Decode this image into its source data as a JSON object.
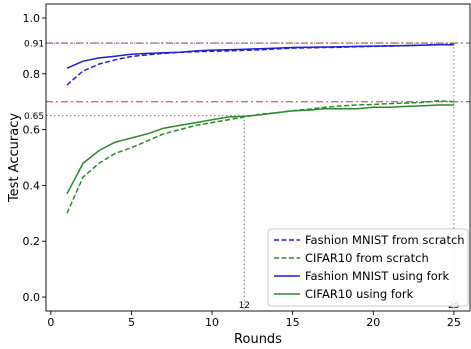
{
  "chart_data": {
    "type": "line",
    "xlabel": "Rounds",
    "ylabel": "Test Accuracy",
    "xlim": [
      -0.3,
      26
    ],
    "ylim": [
      -0.05,
      1.05
    ],
    "xticks": [
      0,
      5,
      10,
      15,
      20,
      25
    ],
    "yticks": [
      0.0,
      0.2,
      0.4,
      0.6,
      0.8,
      1.0
    ],
    "xtick_labels": [
      "0",
      "5",
      "10",
      "15",
      "20",
      "25"
    ],
    "ytick_labels": [
      "0.0",
      "0.2",
      "0.4",
      "0.6",
      "0.8",
      "1.0"
    ],
    "grid": false,
    "legend_position": "lower-right",
    "x": [
      1,
      2,
      3,
      4,
      5,
      6,
      7,
      8,
      9,
      10,
      11,
      12,
      13,
      14,
      15,
      16,
      17,
      18,
      19,
      20,
      21,
      22,
      23,
      24,
      25
    ],
    "series": [
      {
        "name": "Fashion MNIST from scratch",
        "color": "#1f1fd6",
        "style": "dashed",
        "values": [
          0.76,
          0.81,
          0.835,
          0.85,
          0.862,
          0.868,
          0.873,
          0.877,
          0.879,
          0.881,
          0.882,
          0.884,
          0.886,
          0.889,
          0.892,
          0.893,
          0.894,
          0.895,
          0.897,
          0.898,
          0.899,
          0.901,
          0.902,
          0.904,
          0.906
        ]
      },
      {
        "name": "CIFAR10 from scratch",
        "color": "#2a8a2a",
        "style": "dashed",
        "values": [
          0.3,
          0.43,
          0.48,
          0.515,
          0.535,
          0.56,
          0.585,
          0.6,
          0.615,
          0.625,
          0.635,
          0.645,
          0.655,
          0.66,
          0.668,
          0.673,
          0.68,
          0.685,
          0.688,
          0.69,
          0.693,
          0.695,
          0.697,
          0.703,
          0.7
        ]
      },
      {
        "name": "Fashion MNIST using fork",
        "color": "#1f1fd6",
        "style": "solid",
        "values": [
          0.82,
          0.845,
          0.857,
          0.863,
          0.87,
          0.873,
          0.875,
          0.877,
          0.882,
          0.885,
          0.886,
          0.888,
          0.89,
          0.892,
          0.894,
          0.895,
          0.896,
          0.897,
          0.898,
          0.899,
          0.9,
          0.901,
          0.902,
          0.904,
          0.904
        ]
      },
      {
        "name": "CIFAR10 using fork",
        "color": "#2a8a2a",
        "style": "solid",
        "values": [
          0.37,
          0.48,
          0.525,
          0.555,
          0.57,
          0.585,
          0.605,
          0.615,
          0.625,
          0.635,
          0.645,
          0.648,
          0.653,
          0.66,
          0.667,
          0.67,
          0.675,
          0.675,
          0.675,
          0.68,
          0.68,
          0.683,
          0.685,
          0.688,
          0.688
        ]
      }
    ],
    "reference_lines": [
      {
        "y": 0.91,
        "label": "0.91",
        "color": "#c8716b",
        "style": "dashdot"
      },
      {
        "y": 0.7,
        "label": "",
        "color": "#c8716b",
        "style": "dashdot"
      }
    ],
    "threshold_markers": [
      {
        "y": 0.65,
        "y_label": "0.65",
        "x": 12,
        "x_label": "12"
      },
      {
        "y": 0.91,
        "y_label": "",
        "x": 25,
        "x_label": "25"
      }
    ]
  }
}
